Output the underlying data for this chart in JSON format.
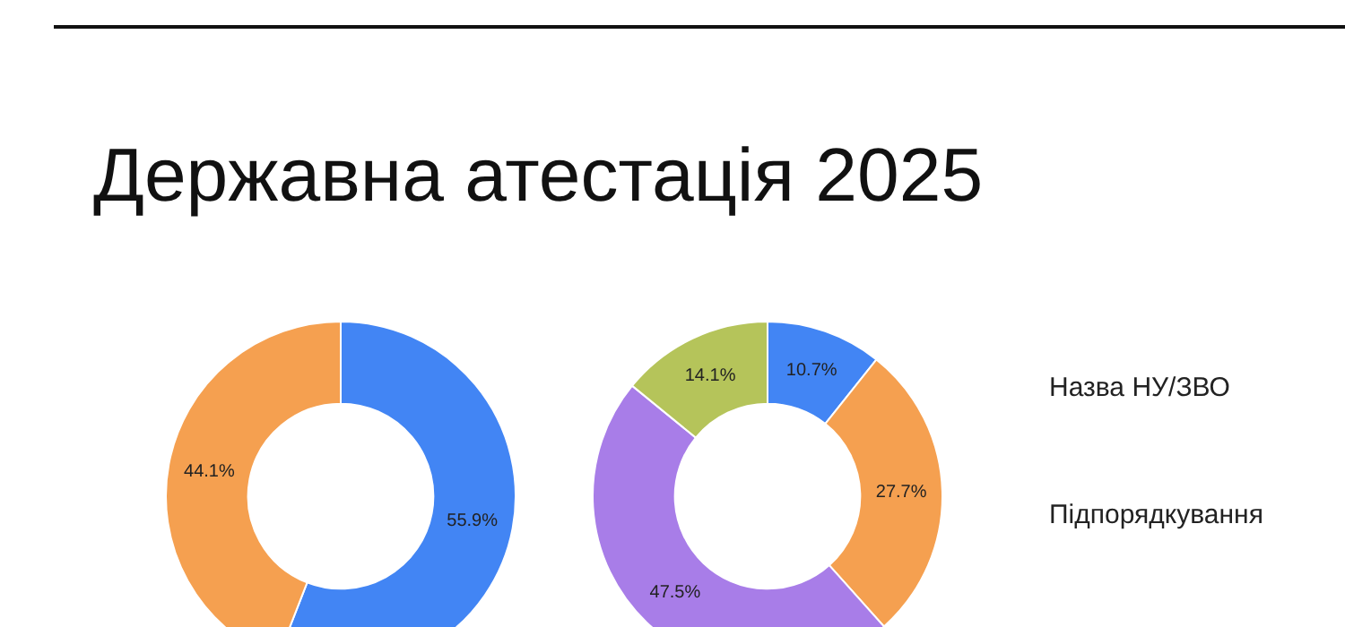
{
  "chart_data": [
    {
      "type": "donut",
      "title": "Державна атестація 2025",
      "categories": [
        null,
        null
      ],
      "values": [
        55.9,
        44.1
      ],
      "colors": [
        "#4285f4",
        "#f5a050"
      ],
      "value_labels": [
        "55.9%",
        "44.1%"
      ]
    },
    {
      "type": "donut",
      "categories": [
        null,
        null,
        null,
        null
      ],
      "values": [
        10.7,
        27.7,
        47.5,
        14.1
      ],
      "colors": [
        "#4285f4",
        "#f5a050",
        "#a87de8",
        "#b5c45a"
      ],
      "value_labels": [
        "10.7%",
        "27.7%",
        "47.5%",
        "14.1%"
      ],
      "annotations": [
        "Назва НУ/ЗВО",
        "Підпорядкування"
      ]
    }
  ]
}
